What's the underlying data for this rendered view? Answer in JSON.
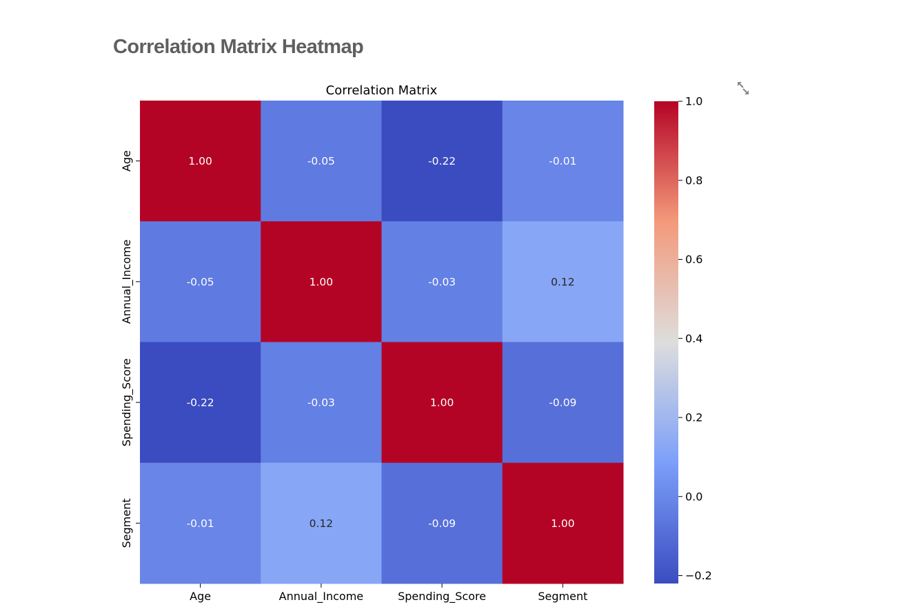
{
  "page": {
    "heading": "Correlation Matrix Heatmap"
  },
  "toolbar": {
    "fullscreen_icon": "expand-arrows-icon"
  },
  "colors": {
    "heading": "#5f5f5f",
    "icon": "#8a8a8a",
    "colormap": "coolwarm"
  },
  "chart_data": {
    "type": "heatmap",
    "title": "Correlation Matrix",
    "x_labels": [
      "Age",
      "Annual_Income",
      "Spending_Score",
      "Segment"
    ],
    "y_labels": [
      "Age",
      "Annual_Income",
      "Spending_Score",
      "Segment"
    ],
    "values": [
      [
        1.0,
        -0.05,
        -0.22,
        -0.01
      ],
      [
        -0.05,
        1.0,
        -0.03,
        0.12
      ],
      [
        -0.22,
        -0.03,
        1.0,
        -0.09
      ],
      [
        -0.01,
        0.12,
        -0.09,
        1.0
      ]
    ],
    "annotation_format": "0.00",
    "colorbar": {
      "range": [
        -0.22,
        1.0
      ],
      "ticks": [
        -0.2,
        0.0,
        0.2,
        0.4,
        0.6,
        0.8,
        1.0
      ],
      "tick_labels": [
        "−0.2",
        "0.0",
        "0.2",
        "0.4",
        "0.6",
        "0.8",
        "1.0"
      ]
    },
    "grid": false,
    "legend": "colorbar-right"
  }
}
